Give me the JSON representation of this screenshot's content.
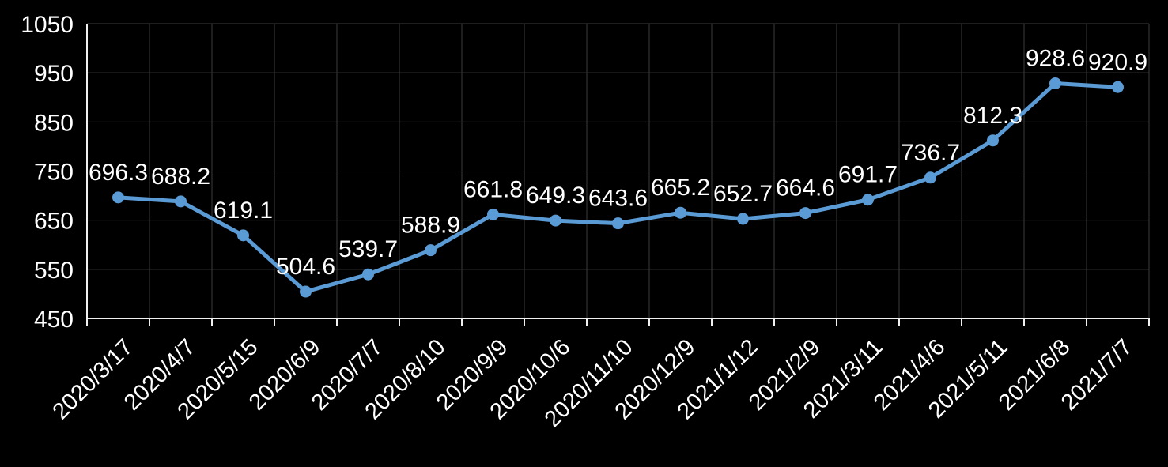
{
  "chart_data": {
    "type": "line",
    "title": "",
    "xlabel": "",
    "ylabel": "",
    "categories": [
      "2020/3/17",
      "2020/4/7",
      "2020/5/15",
      "2020/6/9",
      "2020/7/7",
      "2020/8/10",
      "2020/9/9",
      "2020/10/6",
      "2020/11/10",
      "2020/12/9",
      "2021/1/12",
      "2021/2/9",
      "2021/3/11",
      "2021/4/6",
      "2021/5/11",
      "2021/6/8",
      "2021/7/7"
    ],
    "values": [
      696.3,
      688.2,
      619.1,
      504.6,
      539.7,
      588.9,
      661.8,
      649.3,
      643.6,
      665.2,
      652.7,
      664.6,
      691.7,
      736.7,
      812.3,
      928.6,
      920.9
    ],
    "data_labels_visible": true,
    "ylim": [
      450,
      1050
    ],
    "yticks": [
      450,
      550,
      650,
      750,
      850,
      950,
      1050
    ],
    "grid": true,
    "legend": "none",
    "marker": "circle",
    "x_label_rotation_deg": 45,
    "colors": {
      "background": "#000000",
      "series": "#5b9bd5",
      "gridline": "#3d3d3d",
      "axis_line": "#f0f0f0",
      "tick_label": "#ffffff",
      "data_label": "#ffffff"
    }
  }
}
